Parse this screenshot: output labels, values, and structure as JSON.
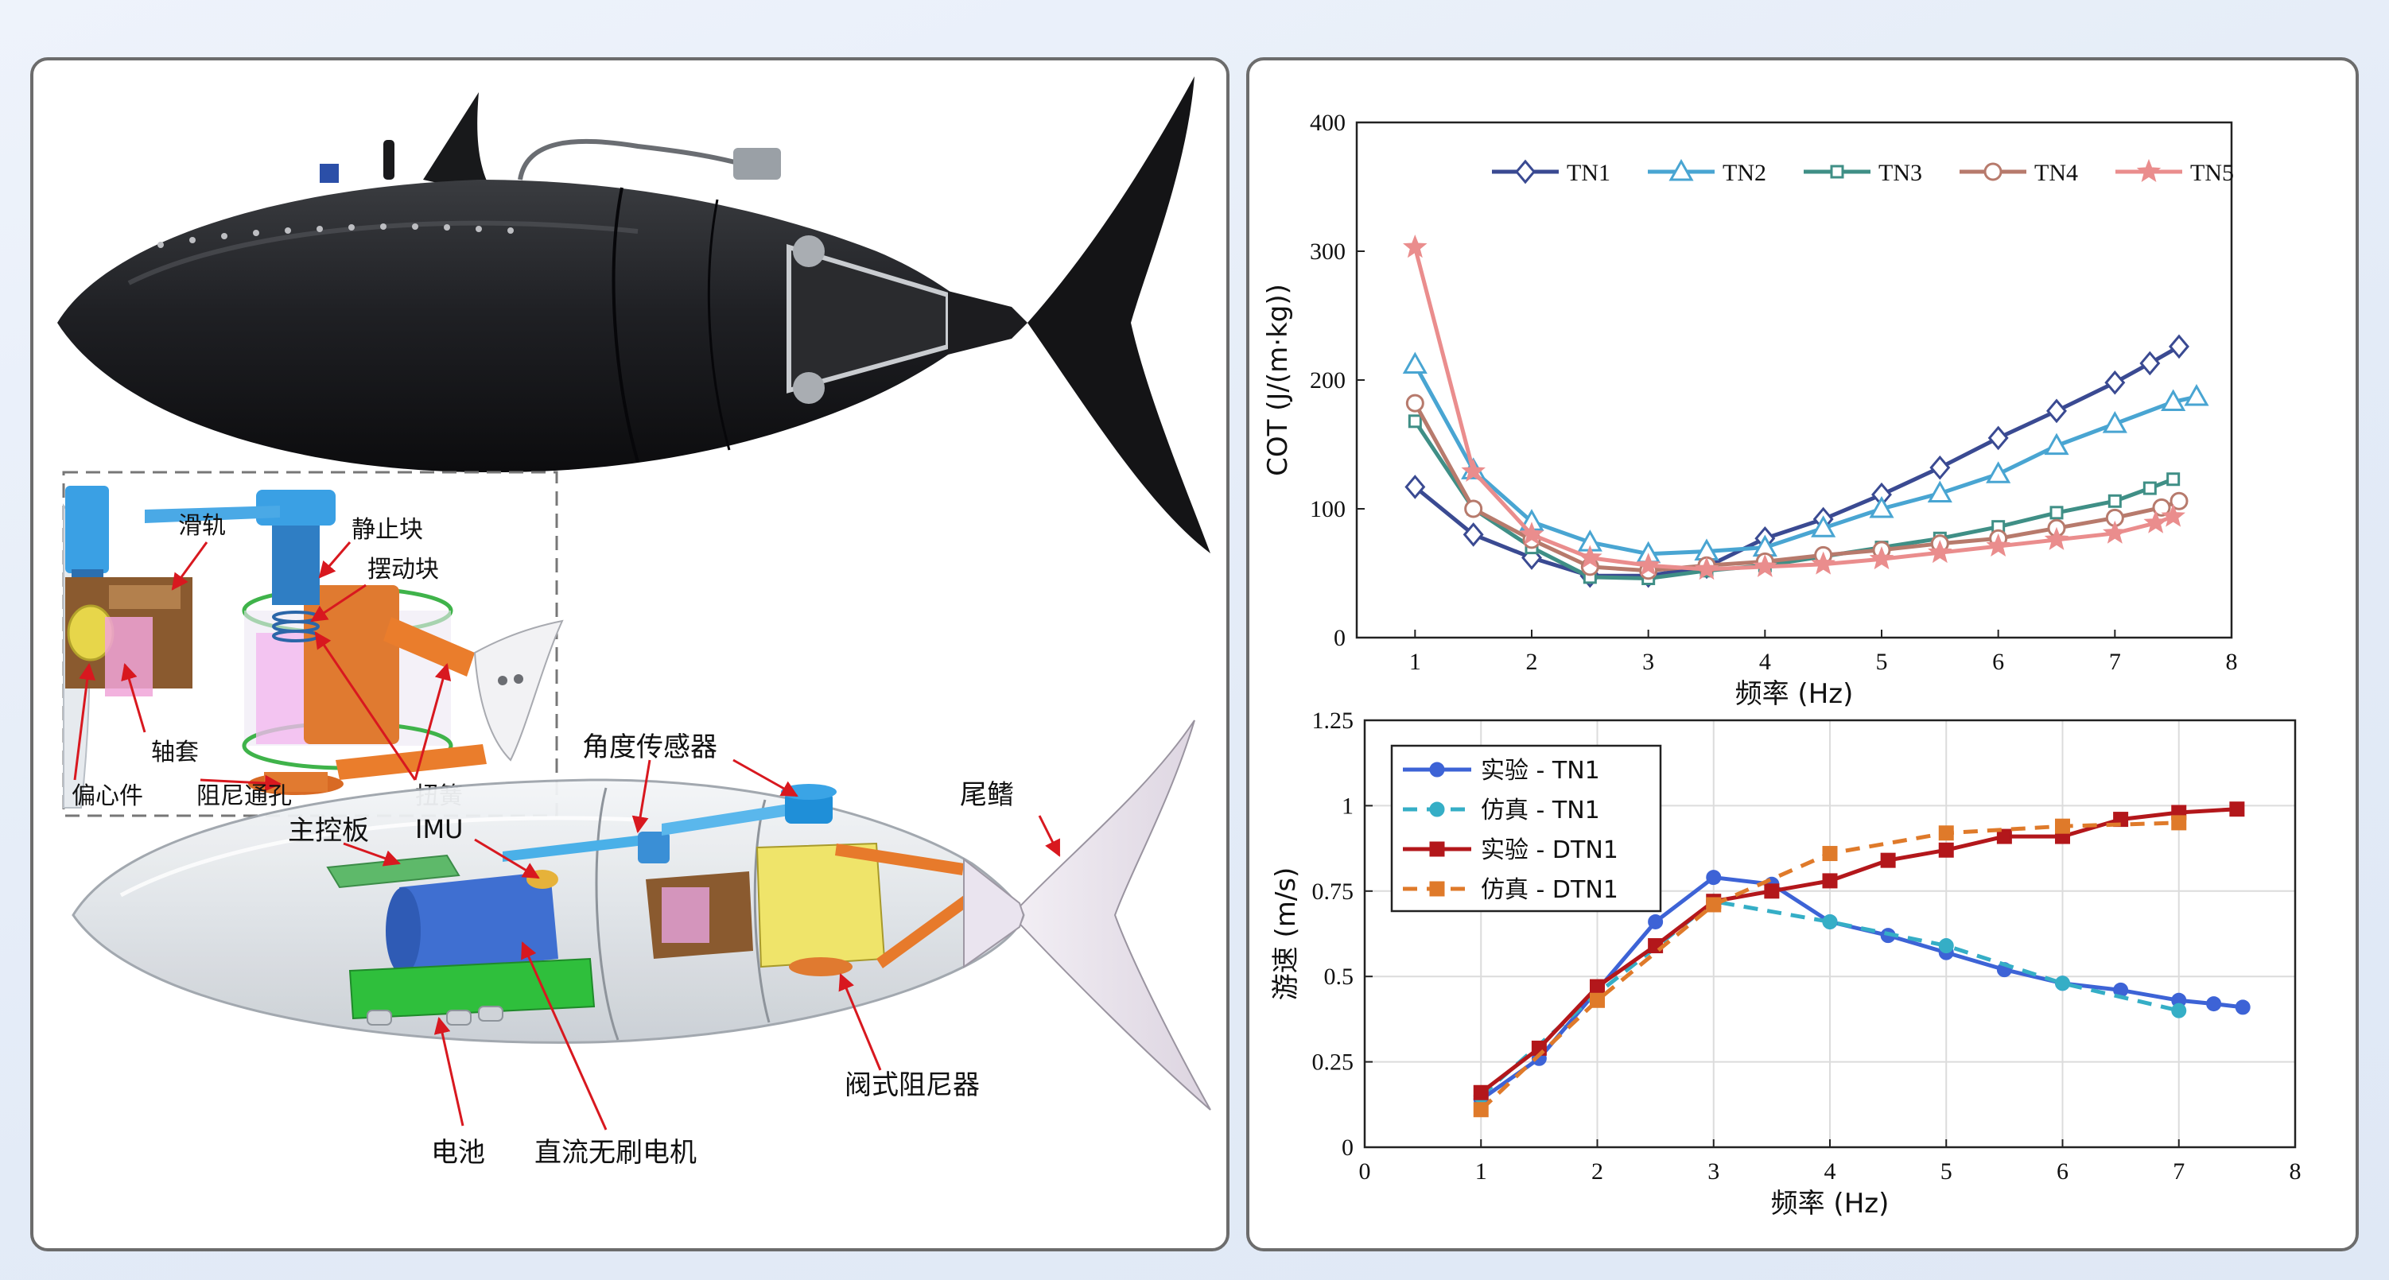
{
  "labels": {
    "slide_rail": "滑轨",
    "static_block": "静止块",
    "swing_block": "摆动块",
    "sleeve": "轴套",
    "eccentric": "偏心件",
    "damping_hole": "阻尼通孔",
    "torsion_spring": "扭簧",
    "angle_sensor": "角度传感器",
    "tail_fin": "尾鳍",
    "main_board": "主控板",
    "imu": "IMU",
    "valve_damper": "阀式阻尼器",
    "battery": "电池",
    "bldc_motor": "直流无刷电机"
  },
  "colors": {
    "TN1": "#3a4a92",
    "TN2": "#49a5d2",
    "TN3": "#3f8f86",
    "TN4": "#b77a6c",
    "TN5": "#ea8d8d",
    "exp_tn1": "#3d63d6",
    "sim_tn1": "#35aec6",
    "exp_dtn1": "#b3171b",
    "sim_dtn1": "#df7a2a"
  },
  "chart_data": [
    {
      "type": "line",
      "xlabel": "频率 (Hz)",
      "ylabel": "COT (J/(m·kg))",
      "xlim": [
        0.5,
        8
      ],
      "ylim": [
        0,
        400
      ],
      "xticks": [
        1,
        2,
        3,
        4,
        5,
        6,
        7,
        8
      ],
      "yticks": [
        0,
        100,
        200,
        300,
        400
      ],
      "grid": false,
      "legend": "top, horizontal",
      "series": [
        {
          "name": "TN1",
          "marker": "diamond",
          "x": [
            1,
            1.5,
            2,
            2.5,
            3,
            3.5,
            4,
            4.5,
            5,
            5.5,
            6,
            6.5,
            7,
            7.3,
            7.55
          ],
          "y": [
            117,
            80,
            62,
            48,
            48,
            55,
            77,
            92,
            111,
            132,
            155,
            176,
            198,
            213,
            226
          ]
        },
        {
          "name": "TN2",
          "marker": "triangle",
          "x": [
            1,
            1.5,
            2,
            2.5,
            3,
            3.5,
            4,
            4.5,
            5,
            5.5,
            6,
            6.5,
            7,
            7.5,
            7.7
          ],
          "y": [
            212,
            130,
            90,
            74,
            65,
            67,
            70,
            85,
            100,
            112,
            127,
            149,
            166,
            183,
            187
          ]
        },
        {
          "name": "TN3",
          "marker": "square",
          "x": [
            1,
            1.5,
            2,
            2.5,
            3,
            3.5,
            4,
            4.5,
            5,
            5.5,
            6,
            6.5,
            7,
            7.3,
            7.5
          ],
          "y": [
            168,
            100,
            70,
            47,
            46,
            52,
            56,
            63,
            70,
            77,
            86,
            97,
            106,
            116,
            123
          ]
        },
        {
          "name": "TN4",
          "marker": "circle",
          "x": [
            1,
            1.5,
            2,
            2.5,
            3,
            3.5,
            4,
            4.5,
            5,
            5.5,
            6,
            6.5,
            7,
            7.4,
            7.55
          ],
          "y": [
            182,
            100,
            76,
            55,
            52,
            56,
            59,
            64,
            68,
            73,
            77,
            85,
            93,
            101,
            106
          ]
        },
        {
          "name": "TN5",
          "marker": "star",
          "x": [
            1,
            1.5,
            2,
            2.5,
            3,
            3.5,
            4,
            4.5,
            5,
            5.5,
            6,
            6.5,
            7,
            7.35,
            7.5
          ],
          "y": [
            303,
            129,
            80,
            62,
            56,
            53,
            55,
            57,
            61,
            66,
            71,
            76,
            81,
            89,
            94
          ]
        }
      ]
    },
    {
      "type": "line",
      "xlabel": "频率 (Hz)",
      "ylabel": "游速 (m/s)",
      "xlim": [
        0,
        8
      ],
      "ylim": [
        0,
        1.25
      ],
      "xticks": [
        0,
        1,
        2,
        3,
        4,
        5,
        6,
        7,
        8
      ],
      "yticks": [
        0,
        0.25,
        0.5,
        0.75,
        1,
        1.25
      ],
      "ytick_labels": [
        "0",
        "0.25",
        "0.5",
        "0.75",
        "1",
        "1.25"
      ],
      "grid": true,
      "legend": "top-left",
      "series": [
        {
          "name": "实验 - TN1",
          "style": "solid",
          "marker": "circle",
          "x": [
            1,
            1.5,
            2,
            2.5,
            3,
            3.5,
            4,
            4.5,
            5,
            5.5,
            6,
            6.5,
            7,
            7.3,
            7.55
          ],
          "y": [
            0.14,
            0.26,
            0.46,
            0.66,
            0.79,
            0.77,
            0.66,
            0.62,
            0.57,
            0.52,
            0.48,
            0.46,
            0.43,
            0.42,
            0.41
          ]
        },
        {
          "name": "仿真 - TN1",
          "style": "dashed",
          "marker": "circle",
          "x": [
            1,
            2,
            3,
            4,
            5,
            6,
            7
          ],
          "y": [
            0.15,
            0.45,
            0.72,
            0.66,
            0.59,
            0.48,
            0.4
          ]
        },
        {
          "name": "实验 - DTN1",
          "style": "solid",
          "marker": "square",
          "x": [
            1,
            1.5,
            2,
            2.5,
            3,
            3.5,
            4,
            4.5,
            5,
            5.5,
            6,
            6.5,
            7,
            7.5
          ],
          "y": [
            0.16,
            0.29,
            0.47,
            0.59,
            0.72,
            0.75,
            0.78,
            0.84,
            0.87,
            0.91,
            0.91,
            0.96,
            0.98,
            0.99
          ]
        },
        {
          "name": "仿真 - DTN1",
          "style": "dashed",
          "marker": "square",
          "x": [
            1,
            2,
            3,
            4,
            5,
            6,
            7
          ],
          "y": [
            0.11,
            0.43,
            0.71,
            0.86,
            0.92,
            0.94,
            0.95
          ]
        }
      ]
    }
  ]
}
